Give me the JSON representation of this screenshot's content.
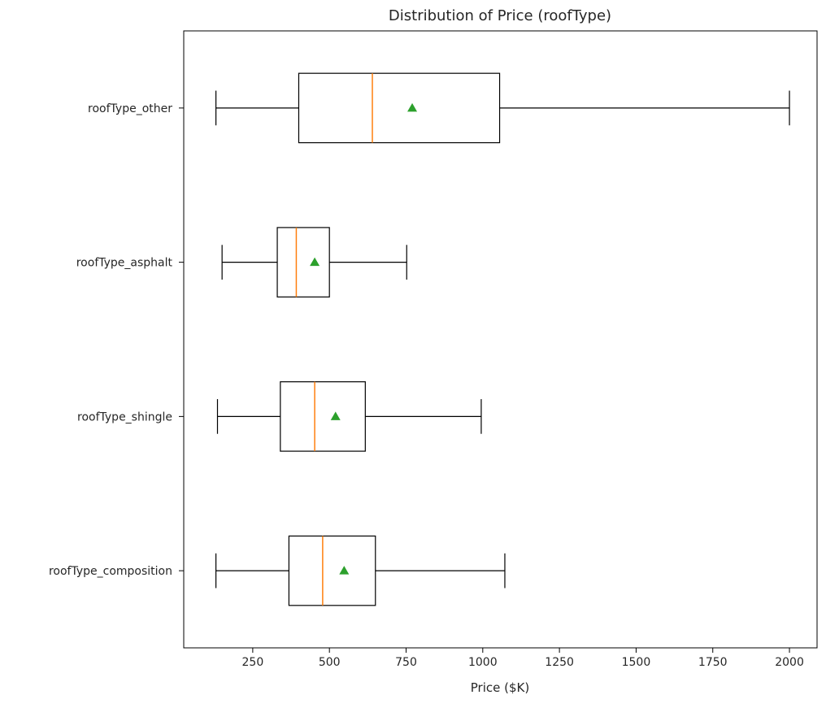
{
  "chart_data": {
    "type": "boxplot",
    "orientation": "horizontal",
    "title": "Distribution of Price (roofType)",
    "xlabel": "Price ($K)",
    "ylabel": "",
    "xlim": [
      25,
      2090
    ],
    "xticks": [
      250,
      500,
      750,
      1000,
      1250,
      1500,
      1750,
      2000
    ],
    "grid": false,
    "categories": [
      "roofType_other",
      "roofType_asphalt",
      "roofType_shingle",
      "roofType_composition"
    ],
    "boxes": [
      {
        "category": "roofType_other",
        "whisker_low": 130,
        "q1": 400,
        "median": 640,
        "q3": 1055,
        "whisker_high": 2000,
        "mean": 770
      },
      {
        "category": "roofType_asphalt",
        "whisker_low": 150,
        "q1": 330,
        "median": 392,
        "q3": 500,
        "whisker_high": 752,
        "mean": 452
      },
      {
        "category": "roofType_shingle",
        "whisker_low": 135,
        "q1": 340,
        "median": 452,
        "q3": 617,
        "whisker_high": 995,
        "mean": 520
      },
      {
        "category": "roofType_composition",
        "whisker_low": 130,
        "q1": 368,
        "median": 478,
        "q3": 650,
        "whisker_high": 1072,
        "mean": 548
      }
    ],
    "colors": {
      "box": "#000000",
      "median": "#ff7f0e",
      "mean": "#2ca02c"
    }
  }
}
